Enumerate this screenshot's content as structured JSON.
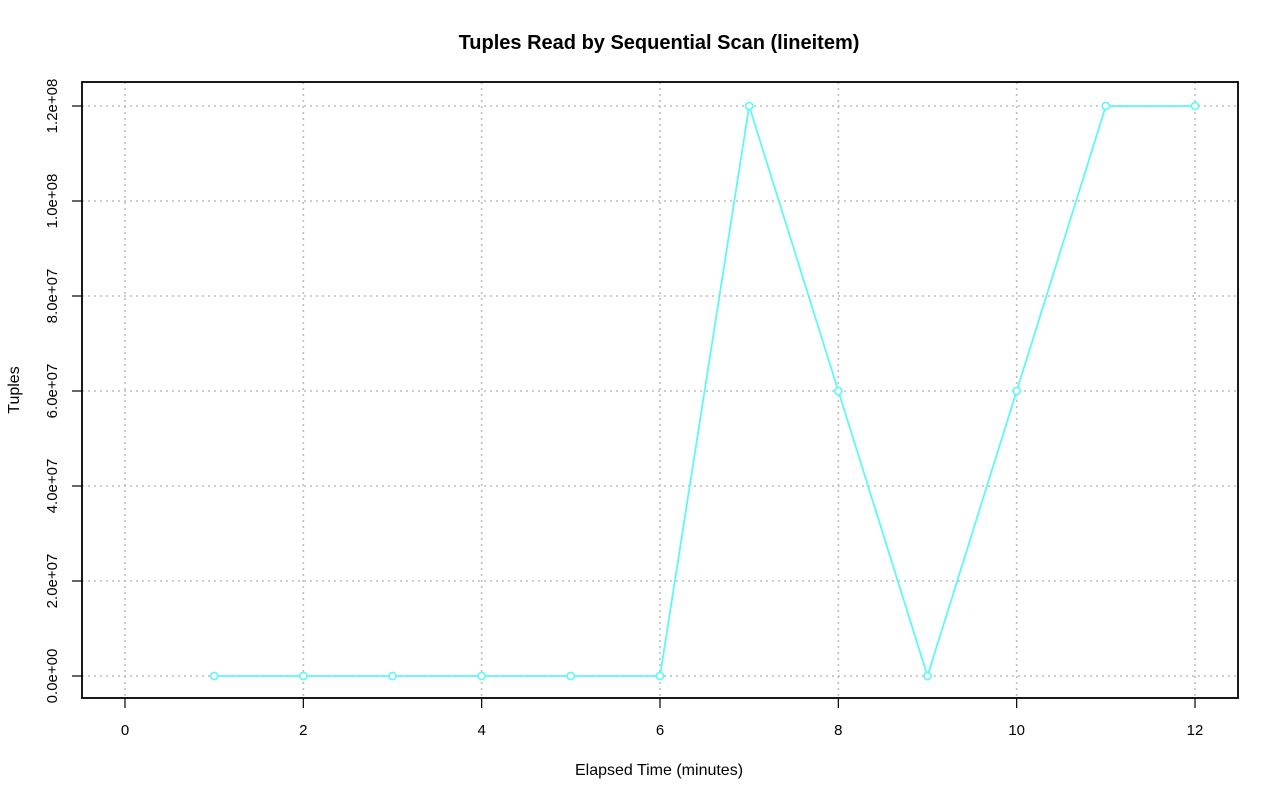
{
  "chart_data": {
    "type": "line",
    "title": "Tuples Read by Sequential Scan (lineitem)",
    "xlabel": "Elapsed Time (minutes)",
    "ylabel": "Tuples",
    "x": [
      1,
      2,
      3,
      4,
      5,
      6,
      7,
      8,
      9,
      10,
      11,
      12
    ],
    "series": [
      {
        "values": [
          0,
          0,
          0,
          0,
          0,
          0,
          120000000,
          60000000,
          0,
          60000000,
          120000000,
          120000000
        ],
        "color": "#5ff7f7"
      }
    ],
    "xlim": [
      0,
      12
    ],
    "ylim": [
      0,
      120000000
    ],
    "x_ticks": [
      0,
      2,
      4,
      6,
      8,
      10,
      12
    ],
    "x_tick_labels": [
      "0",
      "2",
      "4",
      "6",
      "8",
      "10",
      "12"
    ],
    "y_ticks": [
      0,
      20000000,
      40000000,
      60000000,
      80000000,
      100000000,
      120000000
    ],
    "y_tick_labels": [
      "0.0e+00",
      "2.0e+07",
      "4.0e+07",
      "6.0e+07",
      "8.0e+07",
      "1.0e+08",
      "1.2e+08"
    ],
    "grid": true,
    "legend": "none"
  }
}
